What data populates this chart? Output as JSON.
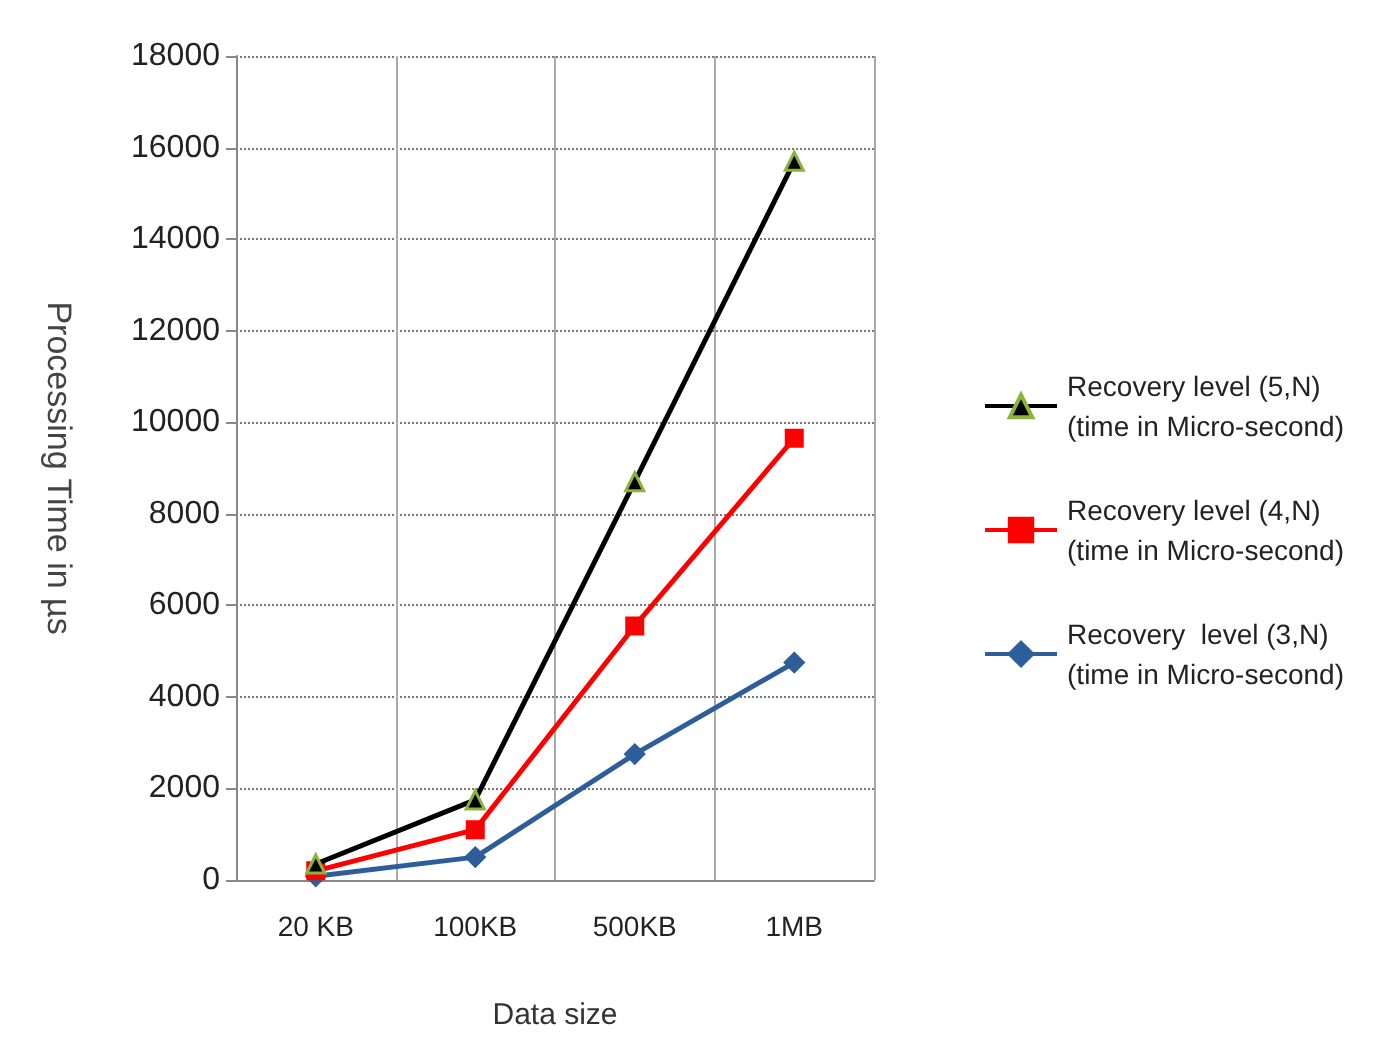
{
  "chart_data": {
    "type": "line",
    "xlabel": "Data size",
    "ylabel": "Processing Time in µs",
    "categories": [
      "20 KB",
      "100KB",
      "500KB",
      "1MB"
    ],
    "series": [
      {
        "name": "Recovery level (5,N)\n(time in Micro-second)",
        "color": "#000000",
        "marker": "triangle",
        "values": [
          350,
          1750,
          8700,
          15700
        ]
      },
      {
        "name": "Recovery level (4,N)\n(time in Micro-second)",
        "color": "#ff0000",
        "marker": "square",
        "values": [
          200,
          1100,
          5550,
          9650
        ]
      },
      {
        "name": "Recovery  level (3,N)\n(time in Micro-second)",
        "color": "#2e5e9a",
        "marker": "diamond",
        "values": [
          80,
          500,
          2750,
          4750
        ]
      }
    ],
    "ylim": [
      0,
      18000
    ],
    "yticks": [
      0,
      2000,
      4000,
      6000,
      8000,
      10000,
      12000,
      14000,
      16000,
      18000
    ],
    "grid": true,
    "legend": "right",
    "line_style": "solid"
  }
}
